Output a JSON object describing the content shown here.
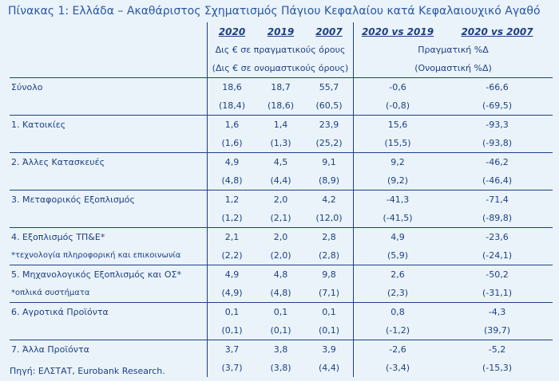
{
  "title": "Πίνακας 1: Ελλάδα – Ακαθάριστος Σχηματισμός Πάγιου Κεφαλαίου κατά Κεφαλαιουχικό Αγαθό",
  "header": {
    "col_2020": "2020",
    "col_2019": "2019",
    "col_2007": "2007",
    "col_2020_vs_2019": "2020 vs 2019",
    "col_2020_vs_2007": "2020 vs 2007",
    "units_left_real": "Δις € σε πραγματικούς όρους",
    "units_left_nominal": "(Δις € σε ονομαστικούς όρους)",
    "units_right_real": "Πραγματική %Δ",
    "units_right_nominal": "(Ονομαστική %Δ)"
  },
  "rows": [
    {
      "label": "Σύνολο",
      "note": "",
      "real": [
        "18,6",
        "18,7",
        "55,7",
        "-0,6",
        "-66,6"
      ],
      "nominal": [
        "(18,4)",
        "(18,6)",
        "(60,5)",
        "(-0,8)",
        "(-69,5)"
      ]
    },
    {
      "label": "1. Κατοικίες",
      "note": "",
      "real": [
        "1,6",
        "1,4",
        "23,9",
        "15,6",
        "-93,3"
      ],
      "nominal": [
        "(1,6)",
        "(1,3)",
        "(25,2)",
        "(15,5)",
        "(-93,8)"
      ]
    },
    {
      "label": "2. Άλλες Κατασκευές",
      "note": "",
      "real": [
        "4,9",
        "4,5",
        "9,1",
        "9,2",
        "-46,2"
      ],
      "nominal": [
        "(4,8)",
        "(4,4)",
        "(8,9)",
        "(9,2)",
        "(-46,4)"
      ]
    },
    {
      "label": "3. Μεταφορικός Εξοπλισμός",
      "note": "",
      "real": [
        "1,2",
        "2,0",
        "4,2",
        "-41,3",
        "-71,4"
      ],
      "nominal": [
        "(1,2)",
        "(2,1)",
        "(12,0)",
        "(-41,5)",
        "(-89,8)"
      ]
    },
    {
      "label": "4. Εξοπλισμός ΤΠ&Ε*",
      "note": "*τεχνολογία πληροφορική και επικοινωνία",
      "real": [
        "2,1",
        "2,0",
        "2,8",
        "4,9",
        "-23,6"
      ],
      "nominal": [
        "(2,2)",
        "(2,0)",
        "(2,8)",
        "(5,9)",
        "(-24,1)"
      ]
    },
    {
      "label": "5. Μηχανολογικός Εξοπλισμός και ΟΣ*",
      "note": "*οπλικά συστήματα",
      "real": [
        "4,9",
        "4,8",
        "9,8",
        "2,6",
        "-50,2"
      ],
      "nominal": [
        "(4,9)",
        "(4,8)",
        "(7,1)",
        "(2,3)",
        "(-31,1)"
      ]
    },
    {
      "label": "6. Αγροτικά Προϊόντα",
      "note": "",
      "real": [
        "0,1",
        "0,1",
        "0,1",
        "0,8",
        "-4,3"
      ],
      "nominal": [
        "(0,1)",
        "(0,1)",
        "(0,1)",
        "(-1,2)",
        "(39,7)"
      ]
    },
    {
      "label": "7. Άλλα Προϊόντα",
      "note": "",
      "real": [
        "3,7",
        "3,8",
        "3,9",
        "-2,6",
        "-5,2"
      ],
      "nominal": [
        "(3,7)",
        "(3,8)",
        "(4,4)",
        "(-3,4)",
        "(-15,3)"
      ]
    }
  ],
  "source": "Πηγή: ΕΛΣΤΑΤ, Eurobank Research."
}
